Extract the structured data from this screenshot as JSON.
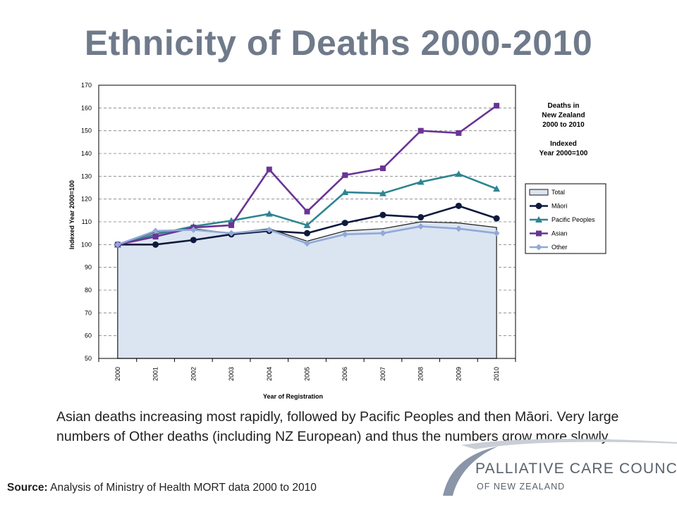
{
  "title": "Ethnicity of Deaths 2000-2010",
  "chart_data": {
    "type": "line",
    "xlabel": "Year of Registration",
    "ylabel": "Indexed Year 2000=100",
    "ylim": [
      50,
      170
    ],
    "yticks": [
      50,
      60,
      70,
      80,
      90,
      100,
      110,
      120,
      130,
      140,
      150,
      160,
      170
    ],
    "categories": [
      "2000",
      "2001",
      "2002",
      "2003",
      "2004",
      "2005",
      "2006",
      "2007",
      "2008",
      "2009",
      "2010"
    ],
    "grid": true,
    "legend_position": "right",
    "annotation": [
      "Deaths in",
      "New Zealand",
      "2000 to 2010",
      "",
      "Indexed",
      "Year 2000=100"
    ],
    "series": [
      {
        "name": "Total",
        "kind": "area",
        "color": "#1a1a1a",
        "fill": "#dbe4f1",
        "values": [
          100,
          105.5,
          107,
          105,
          107,
          101.5,
          106,
          107,
          110,
          109.5,
          107.5
        ]
      },
      {
        "name": "Māori",
        "kind": "line",
        "marker": "circle",
        "color": "#0d1a3d",
        "values": [
          100,
          100,
          102,
          104.5,
          106,
          105,
          109.5,
          113,
          112,
          117,
          111.5
        ]
      },
      {
        "name": "Pacific Peoples",
        "kind": "line",
        "marker": "triangle",
        "color": "#2e8591",
        "values": [
          100,
          104.5,
          108,
          110.5,
          113.5,
          108.5,
          123,
          122.5,
          127.5,
          131,
          124.5
        ]
      },
      {
        "name": "Asian",
        "kind": "line",
        "marker": "square",
        "color": "#6a3495",
        "values": [
          100,
          103.5,
          107.5,
          108.5,
          133,
          114.5,
          130.5,
          133.5,
          150,
          149,
          161
        ]
      },
      {
        "name": "Other",
        "kind": "line",
        "marker": "diamond",
        "color": "#91a9d6",
        "values": [
          100,
          106,
          106.5,
          105,
          106.5,
          100.5,
          104.5,
          105,
          108,
          107,
          105
        ]
      }
    ]
  },
  "body_text": "Asian deaths increasing most rapidly, followed by Pacific Peoples and then Māori. Very large numbers of Other deaths (including NZ European) and thus the numbers grow more slowly.",
  "source": {
    "label": "Source:",
    "text": " Analysis of Ministry of Health MORT data 2000 to 2010"
  },
  "logo": {
    "line1": "PALLIATIVE CARE COUNCIL",
    "line2": "OF NEW ZEALAND"
  }
}
